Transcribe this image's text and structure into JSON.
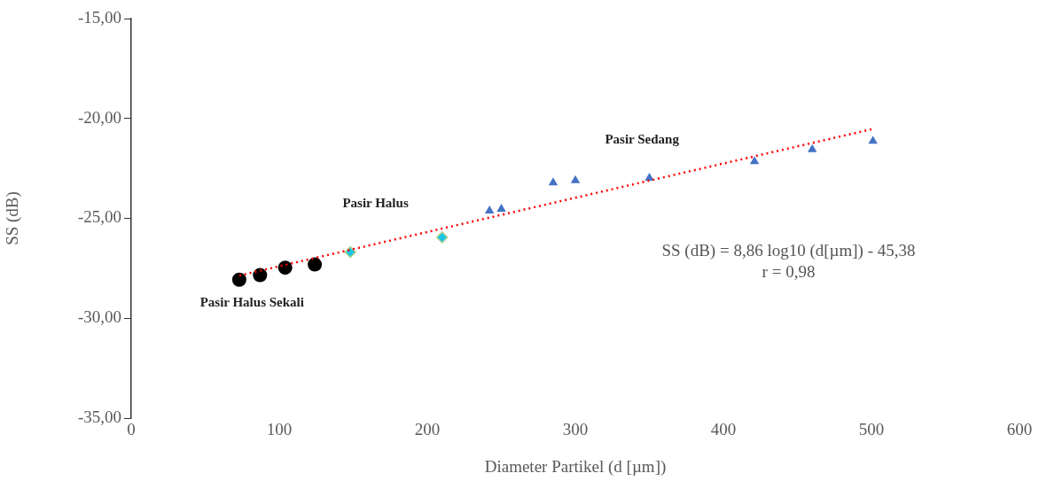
{
  "chart_data": {
    "type": "scatter",
    "xlabel": "Diameter Partikel (d [µm])",
    "ylabel": "SS (dB)",
    "xlim": [
      0,
      600
    ],
    "xticks": [
      0,
      100,
      200,
      300,
      400,
      500,
      600
    ],
    "ylim": [
      -35,
      -15
    ],
    "yticks": [
      {
        "value": -35,
        "label": "-35,00"
      },
      {
        "value": -30,
        "label": "-30,00"
      },
      {
        "value": -25,
        "label": "-25,00"
      },
      {
        "value": -20,
        "label": "-20,00"
      },
      {
        "value": -15,
        "label": "-15,00"
      }
    ],
    "grid": false,
    "legend": false,
    "series": [
      {
        "marker": "circle",
        "color": "#000000",
        "x": [
          73,
          87,
          104,
          124
        ],
        "values": [
          -28.07,
          -27.84,
          -27.47,
          -27.31
        ]
      },
      {
        "marker": "diamond",
        "color": "#19c3e6",
        "x": [
          148,
          210
        ],
        "values": [
          -26.69,
          -25.95
        ]
      },
      {
        "marker": "triangle",
        "color": "#4472c4",
        "x": [
          242,
          250,
          285,
          300,
          350,
          421,
          460,
          501
        ],
        "values": [
          -24.62,
          -24.53,
          -23.22,
          -23.1,
          -22.98,
          -22.15,
          -21.55,
          -21.13
        ]
      },
      {
        "type": "line",
        "marker": "none",
        "line_style": "dotted",
        "color": "#ff0000",
        "x": [
          73,
          500
        ],
        "values": [
          -27.86,
          -20.54
        ]
      }
    ],
    "annotations": [
      "Pasir Halus Sekali",
      "Pasir Halus",
      "Pasir Sedang",
      "SS (dB) = 8,86 log10 (d[µm]) - 45,38",
      "r = 0,98"
    ]
  }
}
